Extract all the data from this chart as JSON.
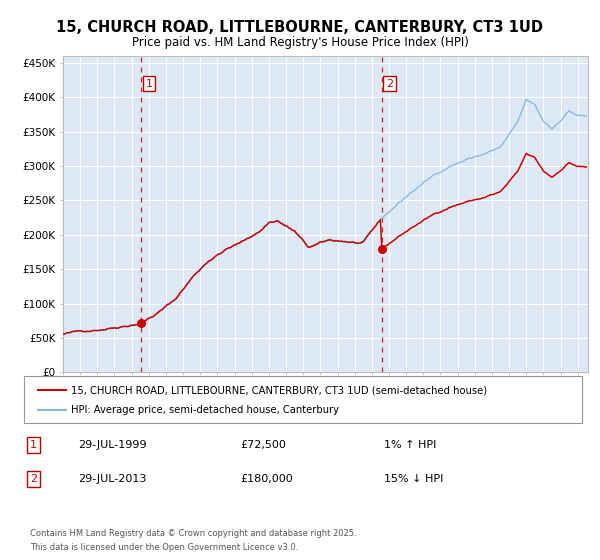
{
  "title1": "15, CHURCH ROAD, LITTLEBOURNE, CANTERBURY, CT3 1UD",
  "title2": "Price paid vs. HM Land Registry's House Price Index (HPI)",
  "ylabel_ticks": [
    "£0",
    "£50K",
    "£100K",
    "£150K",
    "£200K",
    "£250K",
    "£300K",
    "£350K",
    "£400K",
    "£450K"
  ],
  "ylabel_values": [
    0,
    50000,
    100000,
    150000,
    200000,
    250000,
    300000,
    350000,
    400000,
    450000
  ],
  "x_start_year": 1995,
  "x_end_year": 2025,
  "purchase1_year": 1999.57,
  "purchase1_price": 72500,
  "purchase2_year": 2013.57,
  "purchase2_price": 180000,
  "bg_color": "#dce9f5",
  "grid_color": "#ffffff",
  "hpi_line_color": "#88bbdd",
  "price_line_color": "#cc0000",
  "dashed_line_color": "#cc0000",
  "legend1": "15, CHURCH ROAD, LITTLEBOURNE, CANTERBURY, CT3 1UD (semi-detached house)",
  "legend2": "HPI: Average price, semi-detached house, Canterbury",
  "ann1_label": "1",
  "ann1_date": "29-JUL-1999",
  "ann1_price": "£72,500",
  "ann1_pct": "1% ↑ HPI",
  "ann2_label": "2",
  "ann2_date": "29-JUL-2013",
  "ann2_price": "£180,000",
  "ann2_pct": "15% ↓ HPI",
  "footer": "Contains HM Land Registry data © Crown copyright and database right 2025.\nThis data is licensed under the Open Government Licence v3.0."
}
